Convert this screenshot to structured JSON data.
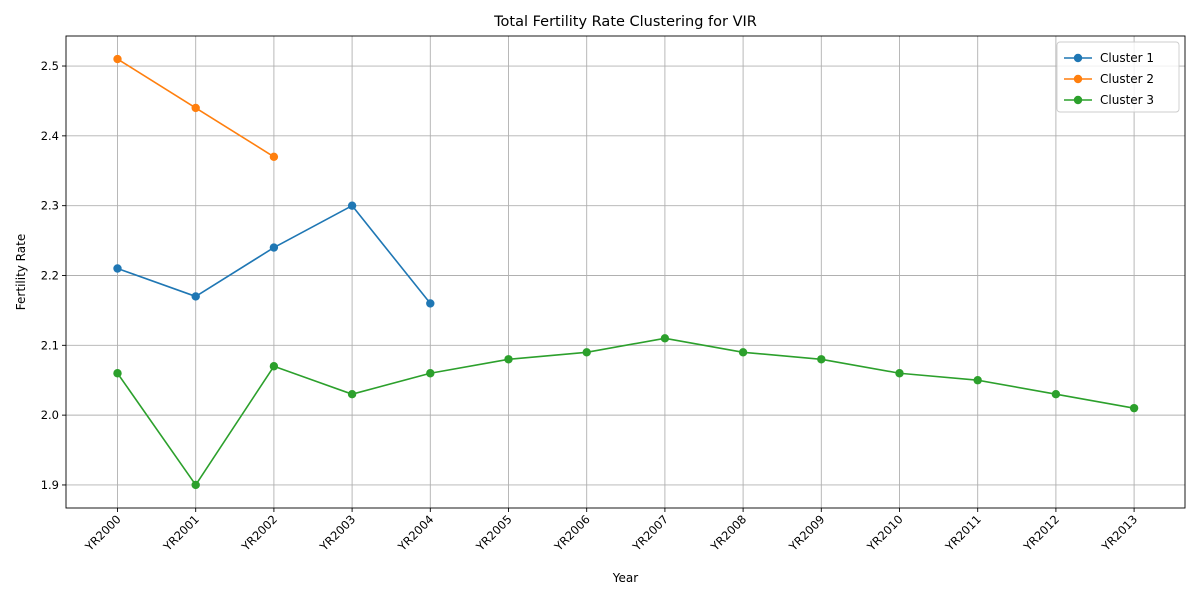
{
  "chart_data": {
    "type": "line",
    "title": "Total Fertility Rate Clustering for VIR",
    "xlabel": "Year",
    "ylabel": "Fertility Rate",
    "categories": [
      "YR2000",
      "YR2001",
      "YR2002",
      "YR2003",
      "YR2004",
      "YR2005",
      "YR2006",
      "YR2007",
      "YR2008",
      "YR2009",
      "YR2010",
      "YR2011",
      "YR2012",
      "YR2013"
    ],
    "yticks": [
      "1.9",
      "2.0",
      "2.1",
      "2.2",
      "2.3",
      "2.4",
      "2.5"
    ],
    "ylim": [
      1.867,
      2.543
    ],
    "grid": true,
    "legend_position": "upper right",
    "series": [
      {
        "name": "Cluster 1",
        "color": "#1f77b4",
        "values": [
          2.21,
          2.17,
          2.24,
          2.3,
          2.16,
          null,
          null,
          null,
          null,
          null,
          null,
          null,
          null,
          null
        ]
      },
      {
        "name": "Cluster 2",
        "color": "#ff7f0e",
        "values": [
          2.51,
          2.44,
          2.37,
          null,
          null,
          null,
          null,
          null,
          null,
          null,
          null,
          null,
          null,
          null
        ]
      },
      {
        "name": "Cluster 3",
        "color": "#2ca02c",
        "values": [
          2.06,
          1.9,
          2.07,
          2.03,
          2.06,
          2.08,
          2.09,
          2.11,
          2.09,
          2.08,
          2.06,
          2.05,
          2.03,
          2.01
        ]
      }
    ]
  }
}
